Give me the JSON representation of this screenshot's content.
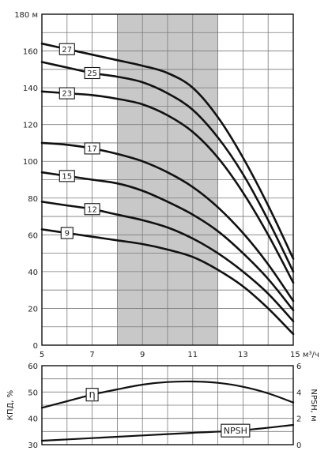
{
  "chart_data": [
    {
      "type": "line",
      "title": "",
      "xlabel": "м³/ч",
      "ylabel": "",
      "y_unit": "м",
      "xlim": [
        5,
        15
      ],
      "ylim": [
        0,
        180
      ],
      "x_ticks": [
        5,
        7,
        9,
        11,
        13,
        15
      ],
      "y_ticks": [
        0,
        20,
        40,
        60,
        80,
        100,
        120,
        140,
        160,
        180
      ],
      "grid": true,
      "highlight_x_range": [
        8,
        12
      ],
      "highlight_color": "#c8c8c8",
      "series": [
        {
          "name": "27",
          "x": [
            5,
            6,
            7,
            8,
            9,
            10,
            11,
            12,
            13,
            14,
            15
          ],
          "values": [
            164,
            161,
            158,
            155,
            152,
            148,
            140,
            124,
            102,
            76,
            47
          ]
        },
        {
          "name": "25",
          "x": [
            5,
            6,
            7,
            8,
            9,
            10,
            11,
            12,
            13,
            14,
            15
          ],
          "values": [
            154,
            151,
            148,
            146,
            143,
            137,
            128,
            113,
            93,
            68,
            40
          ]
        },
        {
          "name": "23",
          "x": [
            5,
            6,
            7,
            8,
            9,
            10,
            11,
            12,
            13,
            14,
            15
          ],
          "values": [
            138,
            137,
            136,
            134,
            131,
            125,
            116,
            102,
            83,
            60,
            34
          ]
        },
        {
          "name": "17",
          "x": [
            5,
            6,
            7,
            8,
            9,
            10,
            11,
            12,
            13,
            14,
            15
          ],
          "values": [
            110,
            109,
            107,
            104,
            100,
            94,
            86,
            75,
            61,
            44,
            24
          ]
        },
        {
          "name": "15",
          "x": [
            5,
            6,
            7,
            8,
            9,
            10,
            11,
            12,
            13,
            14,
            15
          ],
          "values": [
            94,
            92,
            90,
            88,
            84,
            78,
            71,
            62,
            50,
            36,
            19
          ]
        },
        {
          "name": "12",
          "x": [
            5,
            6,
            7,
            8,
            9,
            10,
            11,
            12,
            13,
            14,
            15
          ],
          "values": [
            78,
            76,
            74,
            71,
            68,
            64,
            58,
            50,
            40,
            28,
            13
          ]
        },
        {
          "name": "9",
          "x": [
            5,
            6,
            7,
            8,
            9,
            10,
            11,
            12,
            13,
            14,
            15
          ],
          "values": [
            63,
            61,
            59,
            57,
            55,
            52,
            48,
            41,
            32,
            20,
            6
          ]
        }
      ],
      "label_positions_x": {
        "27": 6,
        "25": 7,
        "23": 6,
        "17": 7,
        "15": 6,
        "12": 7,
        "9": 6
      }
    },
    {
      "type": "line",
      "title": "",
      "ylabel_left": "КПД, %",
      "ylabel_right": "NPSH, м",
      "xlim": [
        5,
        15
      ],
      "ylim_left": [
        30,
        60
      ],
      "ylim_right": [
        0,
        6
      ],
      "y_ticks_left": [
        30,
        40,
        50,
        60
      ],
      "y_ticks_right": [
        0,
        2,
        4,
        6
      ],
      "grid": true,
      "series": [
        {
          "name": "η",
          "axis": "left",
          "x": [
            5,
            6,
            7,
            8,
            9,
            10,
            11,
            12,
            13,
            14,
            15
          ],
          "values": [
            44,
            46.5,
            49,
            51,
            52.8,
            53.8,
            54,
            53.5,
            52,
            49.5,
            46
          ]
        },
        {
          "name": "NPSH",
          "axis": "right",
          "x": [
            5,
            7,
            9,
            11,
            13,
            15
          ],
          "values": [
            0.3,
            0.5,
            0.7,
            0.9,
            1.1,
            1.5
          ]
        }
      ],
      "label_positions_x": {
        "η": 7,
        "NPSH": 12.7
      }
    }
  ]
}
